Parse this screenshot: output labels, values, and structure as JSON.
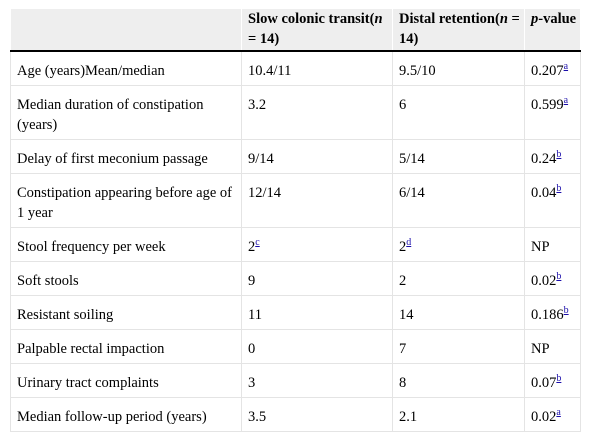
{
  "table": {
    "headers": {
      "col1": "",
      "col2_main": "Slow colonic transit(",
      "col2_n": "n",
      "col2_rest": " = 14)",
      "col3_main": "Distal retention(",
      "col3_n": "n",
      "col3_rest": " = 14)",
      "col4_p": "p",
      "col4_rest": "-value"
    },
    "rows": [
      {
        "label": "Age (years)Mean/median",
        "slow": "10.4/11",
        "distal": "9.5/10",
        "p": "0.207",
        "ref": "a"
      },
      {
        "label": "Median duration of constipation (years)",
        "slow": "3.2",
        "distal": "6",
        "p": "0.599",
        "ref": "a"
      },
      {
        "label": "Delay of first meconium passage",
        "slow": "9/14",
        "distal": "5/14",
        "p": "0.24",
        "ref": "b"
      },
      {
        "label": "Constipation appearing before age of 1 year",
        "slow": "12/14",
        "distal": "6/14",
        "p": "0.04",
        "ref": "b"
      },
      {
        "label": "Stool frequency per week",
        "slow": "2",
        "slow_ref": "c",
        "distal": "2",
        "distal_ref": "d",
        "p": "NP",
        "ref": ""
      },
      {
        "label": "Soft stools",
        "slow": "9",
        "distal": "2",
        "p": "0.02",
        "ref": "b"
      },
      {
        "label": "Resistant soiling",
        "slow": "11",
        "distal": "14",
        "p": "0.186",
        "ref": "b"
      },
      {
        "label": "Palpable rectal impaction",
        "slow": "0",
        "distal": "7",
        "p": "NP",
        "ref": ""
      },
      {
        "label": "Urinary tract complaints",
        "slow": "3",
        "distal": "8",
        "p": "0.07",
        "ref": "b"
      },
      {
        "label": "Median follow-up period (years)",
        "slow": "3.5",
        "distal": "2.1",
        "p": "0.02",
        "ref": "a"
      }
    ]
  }
}
